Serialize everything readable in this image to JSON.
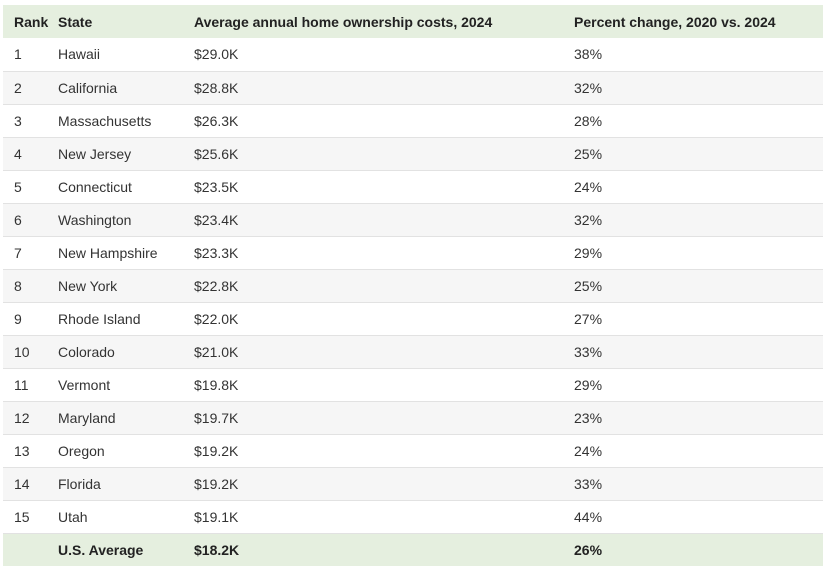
{
  "headers": {
    "rank": "Rank",
    "state": "State",
    "cost": "Average annual home ownership costs, 2024",
    "change": "Percent change, 2020 vs. 2024"
  },
  "rows": [
    {
      "rank": "1",
      "state": "Hawaii",
      "cost": "$29.0K",
      "change": "38%"
    },
    {
      "rank": "2",
      "state": "California",
      "cost": "$28.8K",
      "change": "32%"
    },
    {
      "rank": "3",
      "state": "Massachusetts",
      "cost": "$26.3K",
      "change": "28%"
    },
    {
      "rank": "4",
      "state": "New Jersey",
      "cost": "$25.6K",
      "change": "25%"
    },
    {
      "rank": "5",
      "state": "Connecticut",
      "cost": "$23.5K",
      "change": "24%"
    },
    {
      "rank": "6",
      "state": "Washington",
      "cost": "$23.4K",
      "change": "32%"
    },
    {
      "rank": "7",
      "state": "New Hampshire",
      "cost": "$23.3K",
      "change": "29%"
    },
    {
      "rank": "8",
      "state": "New York",
      "cost": "$22.8K",
      "change": "25%"
    },
    {
      "rank": "9",
      "state": "Rhode Island",
      "cost": "$22.0K",
      "change": "27%"
    },
    {
      "rank": "10",
      "state": "Colorado",
      "cost": "$21.0K",
      "change": "33%"
    },
    {
      "rank": "11",
      "state": "Vermont",
      "cost": "$19.8K",
      "change": "29%"
    },
    {
      "rank": "12",
      "state": "Maryland",
      "cost": "$19.7K",
      "change": "23%"
    },
    {
      "rank": "13",
      "state": "Oregon",
      "cost": "$19.2K",
      "change": "24%"
    },
    {
      "rank": "14",
      "state": "Florida",
      "cost": "$19.2K",
      "change": "33%"
    },
    {
      "rank": "15",
      "state": "Utah",
      "cost": "$19.1K",
      "change": "44%"
    }
  ],
  "footer": {
    "rank": "",
    "state": "U.S. Average",
    "cost": "$18.2K",
    "change": "26%"
  },
  "colors": {
    "header_bg": "#e5efdf",
    "stripe_bg": "#f6f6f6"
  }
}
